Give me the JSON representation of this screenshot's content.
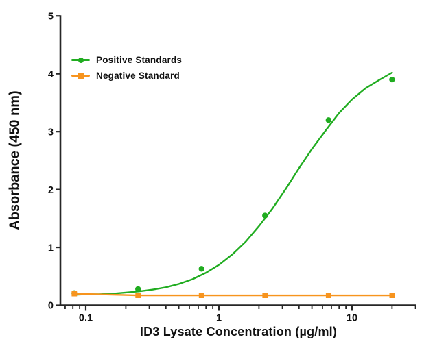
{
  "chart_data": {
    "type": "scatter",
    "subtype": "dose-response-curve-log-x",
    "title": "",
    "xlabel": "ID3 Lysate Concentration (µg/ml)",
    "ylabel": "Absorbance (450 nm)",
    "x_scale": "log10",
    "x_range": [
      0.0645,
      30.5
    ],
    "y_range": [
      0,
      5
    ],
    "grid": false,
    "legend_position": "inside-top-left",
    "axis_color": "#262626",
    "text_color": "#111111",
    "x_major_ticks": [
      {
        "value": 0.1,
        "label": "0.1"
      },
      {
        "value": 1,
        "label": "1"
      },
      {
        "value": 10,
        "label": "10"
      }
    ],
    "x_minor_ticks": [
      0.07,
      0.08,
      0.09,
      0.2,
      0.3,
      0.4,
      0.5,
      0.6,
      0.7,
      0.8,
      0.9,
      2,
      3,
      4,
      5,
      6,
      7,
      8,
      9,
      20,
      30
    ],
    "y_ticks": [
      {
        "value": 0,
        "label": "0"
      },
      {
        "value": 1,
        "label": "1"
      },
      {
        "value": 2,
        "label": "2"
      },
      {
        "value": 3,
        "label": "3"
      },
      {
        "value": 4,
        "label": "4"
      },
      {
        "value": 5,
        "label": "5"
      }
    ],
    "series": [
      {
        "name": "Positive Standards",
        "color": "#20AC20",
        "marker": "circle",
        "points": [
          [
            0.082,
            0.21
          ],
          [
            0.247,
            0.28
          ],
          [
            0.741,
            0.63
          ],
          [
            2.222,
            1.55
          ],
          [
            6.667,
            3.2
          ],
          [
            20,
            3.9
          ]
        ],
        "fit_curve": [
          [
            0.08,
            0.18
          ],
          [
            0.1,
            0.19
          ],
          [
            0.126,
            0.19
          ],
          [
            0.159,
            0.2
          ],
          [
            0.2,
            0.22
          ],
          [
            0.252,
            0.24
          ],
          [
            0.317,
            0.27
          ],
          [
            0.4,
            0.31
          ],
          [
            0.503,
            0.37
          ],
          [
            0.634,
            0.45
          ],
          [
            0.798,
            0.56
          ],
          [
            1.004,
            0.7
          ],
          [
            1.264,
            0.88
          ],
          [
            1.592,
            1.1
          ],
          [
            2.004,
            1.37
          ],
          [
            2.523,
            1.67
          ],
          [
            3.176,
            2.01
          ],
          [
            3.998,
            2.37
          ],
          [
            5.033,
            2.71
          ],
          [
            6.336,
            3.02
          ],
          [
            7.977,
            3.32
          ],
          [
            10.04,
            3.56
          ],
          [
            12.64,
            3.75
          ],
          [
            15.92,
            3.89
          ],
          [
            20.0,
            4.02
          ]
        ]
      },
      {
        "name": "Negative Standard",
        "color": "#F7941E",
        "marker": "square",
        "points": [
          [
            0.082,
            0.2
          ],
          [
            0.247,
            0.17
          ],
          [
            0.741,
            0.17
          ],
          [
            2.222,
            0.17
          ],
          [
            6.667,
            0.17
          ],
          [
            20,
            0.17
          ]
        ],
        "fit_curve": []
      }
    ]
  }
}
